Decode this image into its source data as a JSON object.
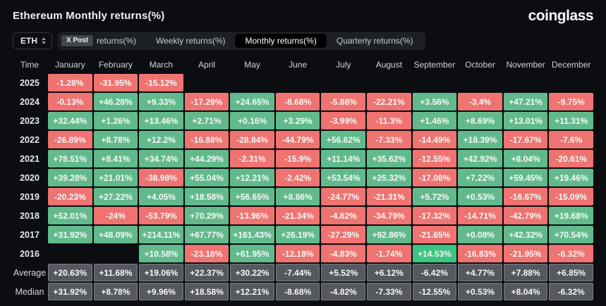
{
  "header": {
    "title": "Ethereum Monthly returns(%)",
    "logo_text": "coinglass"
  },
  "controls": {
    "symbol_select": {
      "value": "ETH"
    },
    "x_post_badge": "X Post",
    "tabs": [
      {
        "label": "returns(%)",
        "selected": false,
        "has_badge": true
      },
      {
        "label": "Weekly returns(%)",
        "selected": false
      },
      {
        "label": "Monthly returns(%)",
        "selected": true
      },
      {
        "label": "Quarterly returns(%)",
        "selected": false
      }
    ]
  },
  "table": {
    "time_header": "Time",
    "months": [
      "January",
      "February",
      "March",
      "April",
      "May",
      "June",
      "July",
      "August",
      "September",
      "October",
      "November",
      "December"
    ],
    "colors": {
      "positive": "#62ba8c",
      "negative": "#ef7370",
      "highlight_positive": "#3ec482",
      "summary": "#55595f",
      "summary_border": "#7c8086",
      "background": "#0b0d11"
    },
    "rows": [
      {
        "label": "2025",
        "type": "year",
        "values": [
          "-1.28%",
          "-31.95%",
          "-15.12%",
          "",
          "",
          "",
          "",
          "",
          "",
          "",
          "",
          ""
        ]
      },
      {
        "label": "2024",
        "type": "year",
        "values": [
          "-0.13%",
          "+46.28%",
          "+9.33%",
          "-17.29%",
          "+24.65%",
          "-8.68%",
          "-5.88%",
          "-22.21%",
          "+3.56%",
          "-3.4%",
          "+47.21%",
          "-9.75%"
        ]
      },
      {
        "label": "2023",
        "type": "year",
        "values": [
          "+32.44%",
          "+1.26%",
          "+13.46%",
          "+2.71%",
          "+0.16%",
          "+3.29%",
          "-3.99%",
          "-11.3%",
          "+1.46%",
          "+8.69%",
          "+13.01%",
          "+11.31%"
        ]
      },
      {
        "label": "2022",
        "type": "year",
        "values": [
          "-26.89%",
          "+8.78%",
          "+12.2%",
          "-16.88%",
          "-28.84%",
          "-44.79%",
          "+56.62%",
          "-7.33%",
          "-14.49%",
          "+18.39%",
          "-17.67%",
          "-7.6%"
        ]
      },
      {
        "label": "2021",
        "type": "year",
        "values": [
          "+78.51%",
          "+8.41%",
          "+34.74%",
          "+44.29%",
          "-2.31%",
          "-15.9%",
          "+11.14%",
          "+35.62%",
          "-12.55%",
          "+42.92%",
          "+8.04%",
          "-20.61%"
        ]
      },
      {
        "label": "2020",
        "type": "year",
        "values": [
          "+39.28%",
          "+21.01%",
          "-38.98%",
          "+55.04%",
          "+12.21%",
          "-2.42%",
          "+53.54%",
          "+25.32%",
          "-17.08%",
          "+7.22%",
          "+59.45%",
          "+19.46%"
        ]
      },
      {
        "label": "2019",
        "type": "year",
        "values": [
          "-20.23%",
          "+27.22%",
          "+4.05%",
          "+18.58%",
          "+56.65%",
          "+8.86%",
          "-24.77%",
          "-21.31%",
          "+5.72%",
          "+0.53%",
          "-16.67%",
          "-15.09%"
        ]
      },
      {
        "label": "2018",
        "type": "year",
        "values": [
          "+52.01%",
          "-24%",
          "-53.79%",
          "+70.29%",
          "-13.96%",
          "-21.34%",
          "-4.82%",
          "-34.79%",
          "-17.32%",
          "-14.71%",
          "-42.79%",
          "+19.68%"
        ]
      },
      {
        "label": "2017",
        "type": "year",
        "values": [
          "+31.92%",
          "+48.09%",
          "+214.11%",
          "+67.77%",
          "+161.43%",
          "+26.19%",
          "-27.29%",
          "+92.86%",
          "-21.65%",
          "+0.08%",
          "+42.32%",
          "+70.54%"
        ]
      },
      {
        "label": "2016",
        "type": "year",
        "highlight_index": 8,
        "values": [
          "",
          "",
          "+10.58%",
          "-23.18%",
          "+61.95%",
          "-12.18%",
          "-4.83%",
          "-1.74%",
          "+14.53%",
          "-16.83%",
          "-21.95%",
          "-6.32%"
        ]
      },
      {
        "label": "Average",
        "type": "summary",
        "values": [
          "+20.63%",
          "+11.68%",
          "+19.06%",
          "+22.37%",
          "+30.22%",
          "-7.44%",
          "+5.52%",
          "+6.12%",
          "-6.42%",
          "+4.77%",
          "+7.88%",
          "+6.85%"
        ]
      },
      {
        "label": "Median",
        "type": "summary",
        "values": [
          "+31.92%",
          "+8.78%",
          "+9.96%",
          "+18.58%",
          "+12.21%",
          "-8.68%",
          "-4.82%",
          "-7.33%",
          "-12.55%",
          "+0.53%",
          "+8.04%",
          "-6.32%"
        ]
      }
    ]
  }
}
